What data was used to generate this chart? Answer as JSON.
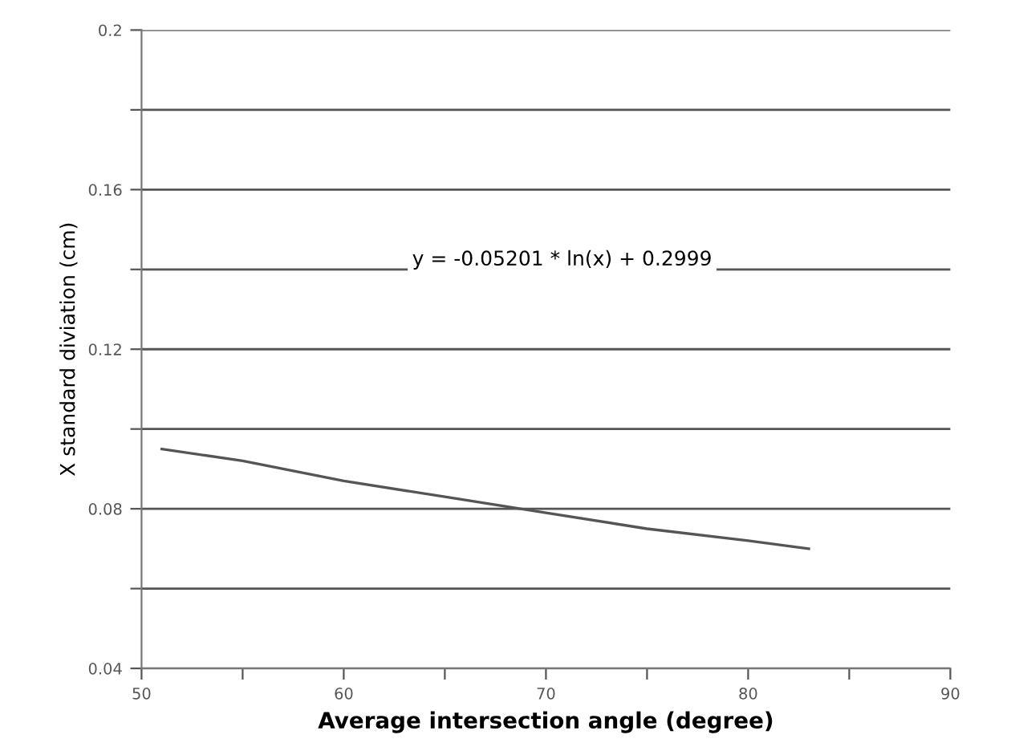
{
  "chart_data": {
    "type": "line",
    "xlabel": "Average intersection angle (degree)",
    "ylabel": "X standard diviation (cm)",
    "annotations": [
      "y = -0.05201 * ln(x) + 0.2999"
    ],
    "x": [
      51,
      55,
      60,
      65,
      70,
      75,
      80,
      83
    ],
    "series": [
      {
        "color": "#555555",
        "values": [
          0.095,
          0.092,
          0.087,
          0.083,
          0.079,
          0.075,
          0.072,
          0.07
        ]
      }
    ],
    "xlim": [
      50,
      90
    ],
    "ylim": [
      0.04,
      0.2
    ],
    "xticks": [
      50,
      {
        "value": 55,
        "label": null
      },
      60,
      {
        "value": 65,
        "label": null
      },
      70,
      {
        "value": 75,
        "label": null
      },
      80,
      {
        "value": 85,
        "label": null
      },
      90
    ],
    "yticks": [
      0.04,
      {
        "value": 0.06,
        "label": null
      },
      0.08,
      {
        "value": 0.1,
        "label": null
      },
      0.12,
      {
        "value": 0.14,
        "label": null
      },
      0.16,
      {
        "value": 0.18,
        "label": null
      },
      0.2
    ],
    "grid": "y",
    "marker": "none",
    "line_style": "solid"
  }
}
